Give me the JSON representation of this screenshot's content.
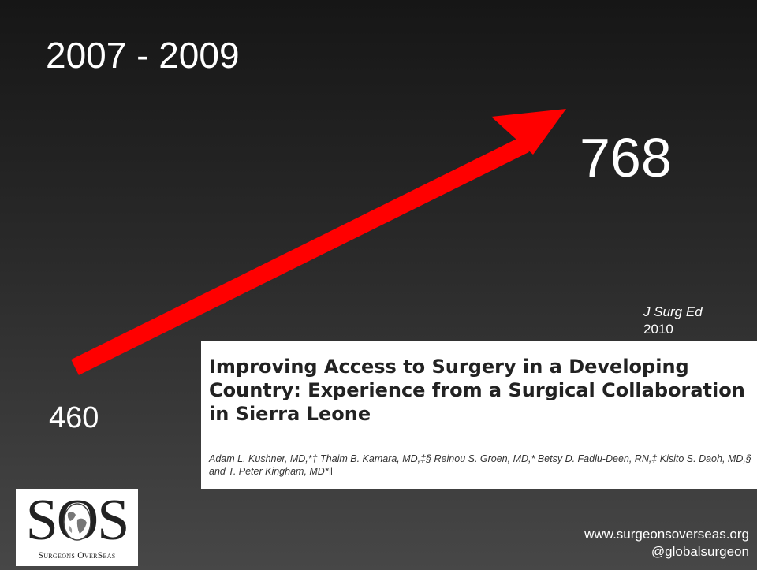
{
  "slide": {
    "years": "2007 - 2009",
    "start_value": "460",
    "end_value": "768",
    "arrow_color": "#ff0000",
    "journal": {
      "name": "J Surg Ed",
      "year": "2010"
    },
    "paper": {
      "title": "Improving Access to Surgery in a Developing Country: Experience from a Surgical Collaboration in Sierra Leone",
      "authors": "Adam L. Kushner, MD,*† Thaim B. Kamara, MD,‡§ Reinou S. Groen, MD,* Betsy D. Fadlu-Deen, RN,‡ Kisito S. Daoh, MD,§ and T. Peter Kingham, MD*‖"
    },
    "logo": {
      "mark": "SOS",
      "subtitle": "Surgeons OverSeas",
      "icon": "globe-icon"
    },
    "website": "www.surgeonsoverseas.org",
    "twitter": "@globalsurgeon"
  }
}
